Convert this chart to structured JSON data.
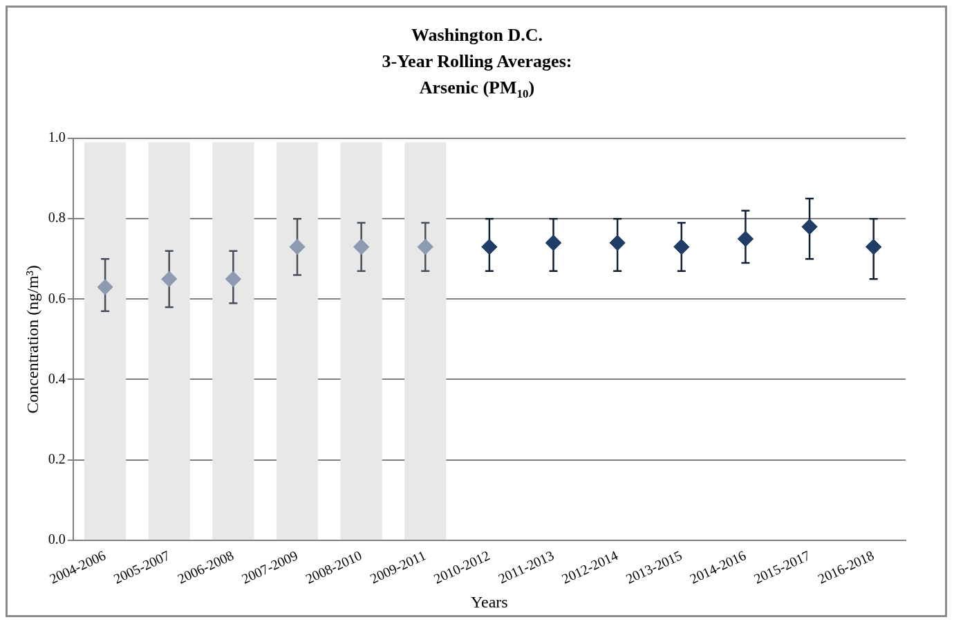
{
  "chart_data": {
    "type": "scatter",
    "title": "Washington D.C.\n3-Year Rolling Averages:\nArsenic (PM$_{10}$)",
    "xlabel": "Years",
    "ylabel": "Concentration (ng/m³)",
    "categories": [
      "2004-2006",
      "2005-2007",
      "2006-2008",
      "2007-2009",
      "2008-2010",
      "2009-2011",
      "2010-2012",
      "2011-2013",
      "2012-2014",
      "2013-2015",
      "2014-2016",
      "2015-2017",
      "2016-2018"
    ],
    "series": [
      {
        "type": "bar",
        "color": "#e8e8e8",
        "values": [
          0.99,
          0.99,
          0.99,
          0.99,
          0.99,
          0.99,
          null,
          null,
          null,
          null,
          null,
          null,
          null
        ]
      },
      {
        "color": "#8c9bb0",
        "values": [
          0.63,
          0.65,
          0.65,
          0.73,
          0.73,
          0.73,
          null,
          null,
          null,
          null,
          null,
          null,
          null
        ],
        "errors": [
          [
            0.57,
            0.7
          ],
          [
            0.58,
            0.72
          ],
          [
            0.59,
            0.72
          ],
          [
            0.66,
            0.8
          ],
          [
            0.67,
            0.79
          ],
          [
            0.67,
            0.79
          ],
          null,
          null,
          null,
          null,
          null,
          null,
          null
        ]
      },
      {
        "color": "#1f3d66",
        "values": [
          null,
          null,
          null,
          null,
          null,
          null,
          0.73,
          0.74,
          0.74,
          0.73,
          0.75,
          0.78,
          0.73
        ],
        "errors": [
          null,
          null,
          null,
          null,
          null,
          null,
          [
            0.67,
            0.8
          ],
          [
            0.67,
            0.8
          ],
          [
            0.67,
            0.8
          ],
          [
            0.67,
            0.79
          ],
          [
            0.69,
            0.82
          ],
          [
            0.7,
            0.85
          ],
          [
            0.65,
            0.8
          ]
        ]
      }
    ],
    "ylim": [
      0,
      1
    ],
    "yticks": [
      {
        "value": 0,
        "label": "0.0"
      },
      {
        "value": 0.2,
        "label": "0.2"
      },
      {
        "value": 0.4,
        "label": "0.4"
      },
      {
        "value": 0.6,
        "label": "0.6"
      },
      {
        "value": 0.8,
        "label": "0.8"
      },
      {
        "value": 1,
        "label": "1.0"
      }
    ],
    "grid": "y",
    "legend": false,
    "marker": "diamond"
  }
}
